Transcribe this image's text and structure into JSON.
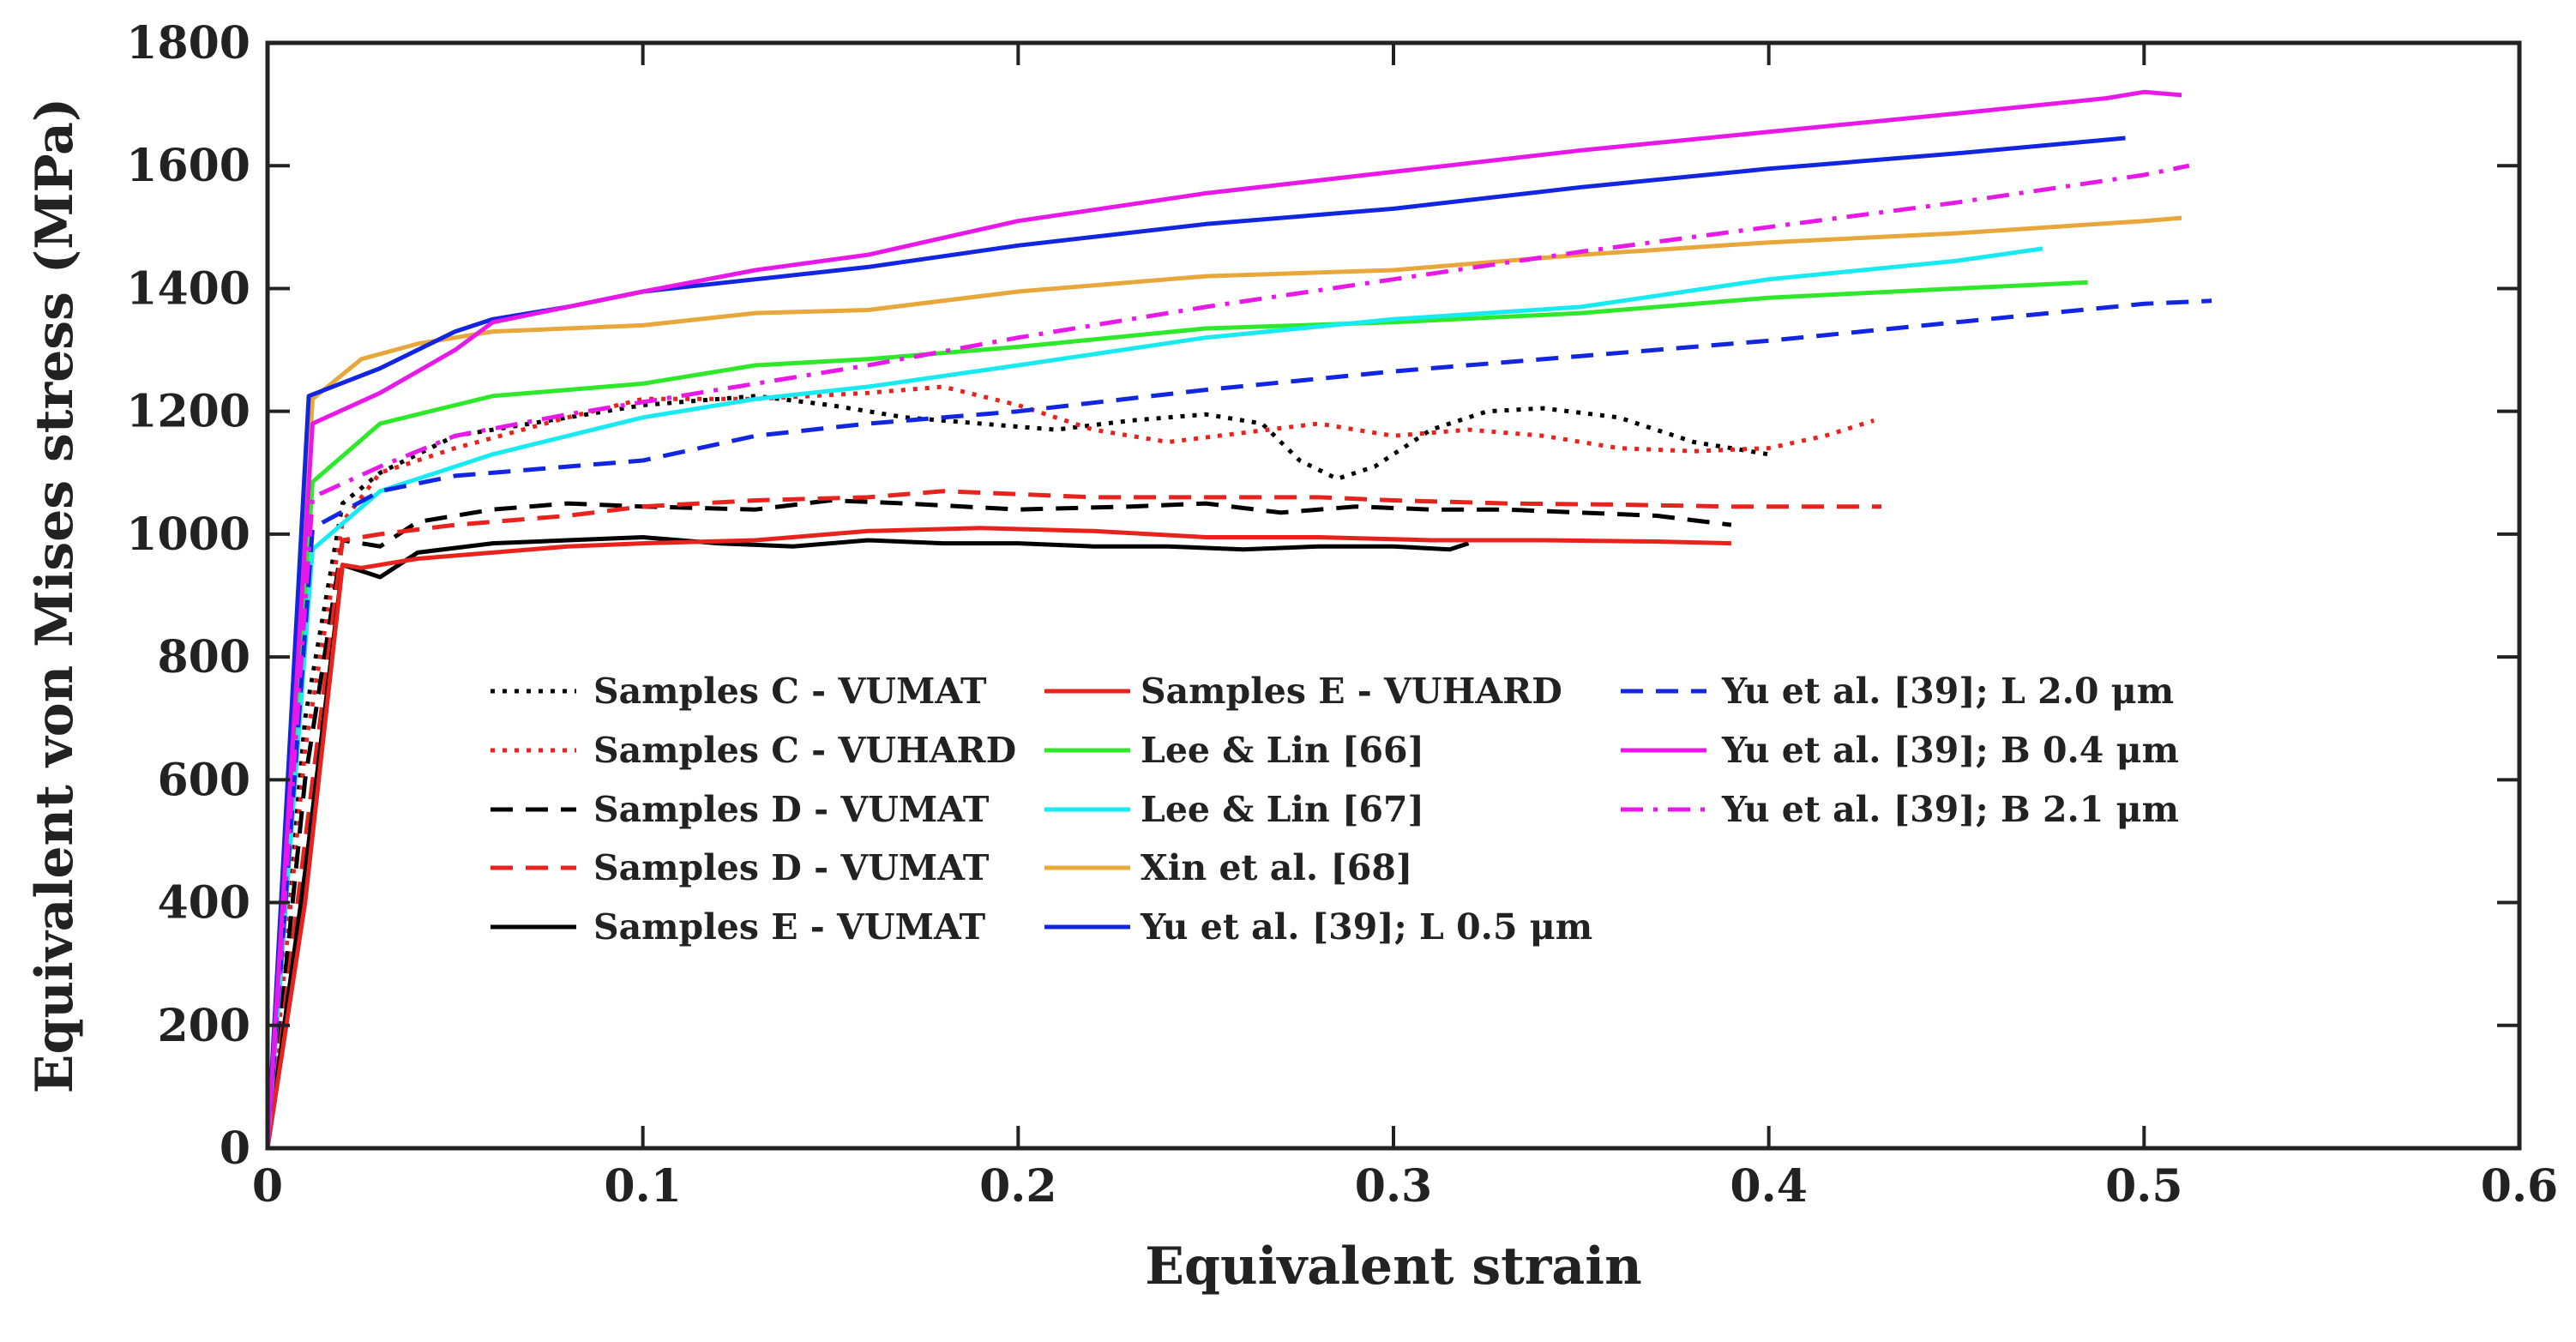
{
  "chart_data": {
    "type": "line",
    "title": "",
    "xlabel": "Equivalent strain",
    "ylabel": "Equivalent von Mises stress (MPa)",
    "xlim": [
      0,
      0.6
    ],
    "ylim": [
      0,
      1800
    ],
    "xticks": [
      0,
      0.1,
      0.2,
      0.3,
      0.4,
      0.5,
      0.6
    ],
    "xtick_labels": [
      "0",
      "0.1",
      "0.2",
      "0.3",
      "0.4",
      "0.5",
      "0.6"
    ],
    "yticks": [
      0,
      200,
      400,
      600,
      800,
      1000,
      1200,
      1400,
      1600,
      1800
    ],
    "ytick_labels": [
      "0",
      "200",
      "400",
      "600",
      "800",
      "1000",
      "1200",
      "1400",
      "1600",
      "1800"
    ],
    "grid": false,
    "legend_position": "center",
    "series": [
      {
        "name": "Samples C - VUMAT",
        "label": "Samples C - VUMAT",
        "color": "#000000",
        "dash": "dot",
        "x": [
          0,
          0.01,
          0.02,
          0.03,
          0.05,
          0.07,
          0.1,
          0.13,
          0.15,
          0.17,
          0.19,
          0.21,
          0.23,
          0.25,
          0.265,
          0.275,
          0.285,
          0.295,
          0.31,
          0.325,
          0.34,
          0.36,
          0.38,
          0.4
        ],
        "y": [
          0,
          700,
          1050,
          1100,
          1160,
          1180,
          1210,
          1225,
          1210,
          1190,
          1180,
          1170,
          1185,
          1195,
          1180,
          1120,
          1090,
          1110,
          1170,
          1200,
          1205,
          1190,
          1150,
          1130
        ]
      },
      {
        "name": "Samples C - VUHARD",
        "label": "Samples C - VUHARD",
        "color": "#e8221d",
        "dash": "dot",
        "x": [
          0,
          0.01,
          0.02,
          0.03,
          0.05,
          0.08,
          0.1,
          0.13,
          0.16,
          0.18,
          0.2,
          0.22,
          0.24,
          0.26,
          0.28,
          0.3,
          0.32,
          0.34,
          0.36,
          0.38,
          0.4,
          0.415,
          0.428
        ],
        "y": [
          0,
          650,
          1020,
          1100,
          1140,
          1190,
          1220,
          1220,
          1230,
          1240,
          1210,
          1170,
          1150,
          1165,
          1180,
          1160,
          1170,
          1160,
          1140,
          1135,
          1140,
          1160,
          1185
        ]
      },
      {
        "name": "Samples D - VUMAT (black)",
        "label": "Samples D - VUMAT",
        "color": "#000000",
        "dash": "dash",
        "x": [
          0,
          0.01,
          0.02,
          0.03,
          0.04,
          0.06,
          0.08,
          0.1,
          0.13,
          0.15,
          0.17,
          0.2,
          0.23,
          0.25,
          0.27,
          0.29,
          0.31,
          0.33,
          0.35,
          0.37,
          0.39
        ],
        "y": [
          0,
          600,
          990,
          980,
          1020,
          1040,
          1050,
          1045,
          1040,
          1055,
          1050,
          1040,
          1045,
          1050,
          1035,
          1045,
          1040,
          1040,
          1035,
          1030,
          1015
        ]
      },
      {
        "name": "Samples D - VUMAT (red)",
        "label": "Samples D - VUMAT",
        "color": "#e8221d",
        "dash": "dash",
        "x": [
          0,
          0.01,
          0.02,
          0.03,
          0.05,
          0.08,
          0.1,
          0.13,
          0.16,
          0.18,
          0.2,
          0.22,
          0.25,
          0.28,
          0.3,
          0.33,
          0.36,
          0.39,
          0.42,
          0.43
        ],
        "y": [
          0,
          500,
          990,
          1000,
          1015,
          1030,
          1045,
          1055,
          1060,
          1070,
          1065,
          1060,
          1060,
          1060,
          1055,
          1050,
          1048,
          1045,
          1045,
          1045
        ]
      },
      {
        "name": "Samples E - VUMAT",
        "label": "Samples E - VUMAT",
        "color": "#000000",
        "dash": "solid",
        "x": [
          0,
          0.01,
          0.02,
          0.025,
          0.03,
          0.04,
          0.06,
          0.08,
          0.1,
          0.12,
          0.14,
          0.16,
          0.18,
          0.2,
          0.22,
          0.24,
          0.26,
          0.28,
          0.3,
          0.315,
          0.32
        ],
        "y": [
          0,
          450,
          950,
          940,
          930,
          970,
          985,
          990,
          995,
          985,
          980,
          990,
          985,
          985,
          980,
          980,
          975,
          980,
          980,
          975,
          985
        ]
      },
      {
        "name": "Samples E - VUHARD",
        "label": "Samples E - VUHARD",
        "color": "#e8221d",
        "dash": "solid",
        "x": [
          0,
          0.01,
          0.02,
          0.025,
          0.04,
          0.06,
          0.08,
          0.1,
          0.13,
          0.16,
          0.19,
          0.22,
          0.25,
          0.28,
          0.31,
          0.34,
          0.37,
          0.39
        ],
        "y": [
          0,
          400,
          950,
          945,
          960,
          970,
          980,
          985,
          990,
          1005,
          1010,
          1005,
          995,
          995,
          990,
          990,
          988,
          985
        ]
      },
      {
        "name": "Lee & Lin [66]",
        "label": "Lee & Lin [66]",
        "color": "#2ee82a",
        "dash": "solid",
        "x": [
          0,
          0.012,
          0.03,
          0.05,
          0.06,
          0.08,
          0.1,
          0.13,
          0.16,
          0.2,
          0.25,
          0.3,
          0.35,
          0.4,
          0.45,
          0.485
        ],
        "y": [
          0,
          1085,
          1180,
          1210,
          1225,
          1235,
          1245,
          1275,
          1285,
          1305,
          1335,
          1345,
          1360,
          1385,
          1400,
          1410
        ]
      },
      {
        "name": "Lee & Lin [67]",
        "label": "Lee & Lin [67]",
        "color": "#17eaf0",
        "dash": "solid",
        "x": [
          0,
          0.012,
          0.03,
          0.05,
          0.06,
          0.08,
          0.1,
          0.13,
          0.16,
          0.2,
          0.25,
          0.3,
          0.35,
          0.4,
          0.45,
          0.473
        ],
        "y": [
          0,
          975,
          1070,
          1110,
          1130,
          1160,
          1190,
          1220,
          1240,
          1275,
          1320,
          1350,
          1370,
          1415,
          1445,
          1465
        ]
      },
      {
        "name": "Xin et al. [68]",
        "label": "Xin et al. [68]",
        "color": "#e8a73a",
        "dash": "solid",
        "x": [
          0,
          0.012,
          0.025,
          0.04,
          0.06,
          0.08,
          0.1,
          0.13,
          0.16,
          0.2,
          0.25,
          0.3,
          0.35,
          0.4,
          0.45,
          0.5,
          0.51
        ],
        "y": [
          0,
          1220,
          1285,
          1310,
          1330,
          1335,
          1340,
          1360,
          1365,
          1395,
          1420,
          1430,
          1455,
          1475,
          1490,
          1510,
          1515
        ]
      },
      {
        "name": "Yu et al. [39]; L 0.5 μm",
        "label": "Yu et al. [39]; L 0.5 μm",
        "color": "#1225e0",
        "dash": "solid",
        "x": [
          0,
          0.011,
          0.03,
          0.05,
          0.06,
          0.08,
          0.1,
          0.13,
          0.16,
          0.2,
          0.25,
          0.3,
          0.35,
          0.4,
          0.45,
          0.495
        ],
        "y": [
          0,
          1225,
          1270,
          1330,
          1350,
          1370,
          1395,
          1415,
          1435,
          1470,
          1505,
          1530,
          1565,
          1595,
          1620,
          1645
        ]
      },
      {
        "name": "Yu et al. [39]; L 2.0 μm",
        "label": "Yu et al. [39]; L 2.0 μm",
        "color": "#1225e0",
        "dash": "dash",
        "x": [
          0,
          0.012,
          0.03,
          0.05,
          0.08,
          0.1,
          0.13,
          0.16,
          0.2,
          0.25,
          0.3,
          0.35,
          0.4,
          0.45,
          0.5,
          0.518
        ],
        "y": [
          0,
          1010,
          1070,
          1095,
          1110,
          1120,
          1160,
          1180,
          1200,
          1235,
          1265,
          1290,
          1315,
          1345,
          1375,
          1380
        ]
      },
      {
        "name": "Yu et al. [39]; B 0.4 μm",
        "label": "Yu et al. [39]; B 0.4 μm",
        "color": "#e818e8",
        "dash": "solid",
        "x": [
          0,
          0.012,
          0.03,
          0.05,
          0.06,
          0.08,
          0.1,
          0.13,
          0.16,
          0.2,
          0.25,
          0.3,
          0.35,
          0.4,
          0.45,
          0.49,
          0.5,
          0.51
        ],
        "y": [
          0,
          1180,
          1230,
          1300,
          1345,
          1370,
          1395,
          1430,
          1455,
          1510,
          1555,
          1590,
          1625,
          1655,
          1685,
          1710,
          1720,
          1715
        ]
      },
      {
        "name": "Yu et al. [39]; B 2.1 μm",
        "label": "Yu et al. [39]; B 2.1 μm",
        "color": "#e818e8",
        "dash": "dashdot",
        "x": [
          0,
          0.012,
          0.03,
          0.05,
          0.08,
          0.1,
          0.13,
          0.16,
          0.2,
          0.25,
          0.3,
          0.35,
          0.4,
          0.45,
          0.5,
          0.512
        ],
        "y": [
          0,
          1060,
          1110,
          1160,
          1195,
          1215,
          1245,
          1275,
          1320,
          1370,
          1415,
          1460,
          1500,
          1540,
          1585,
          1600
        ]
      }
    ]
  }
}
